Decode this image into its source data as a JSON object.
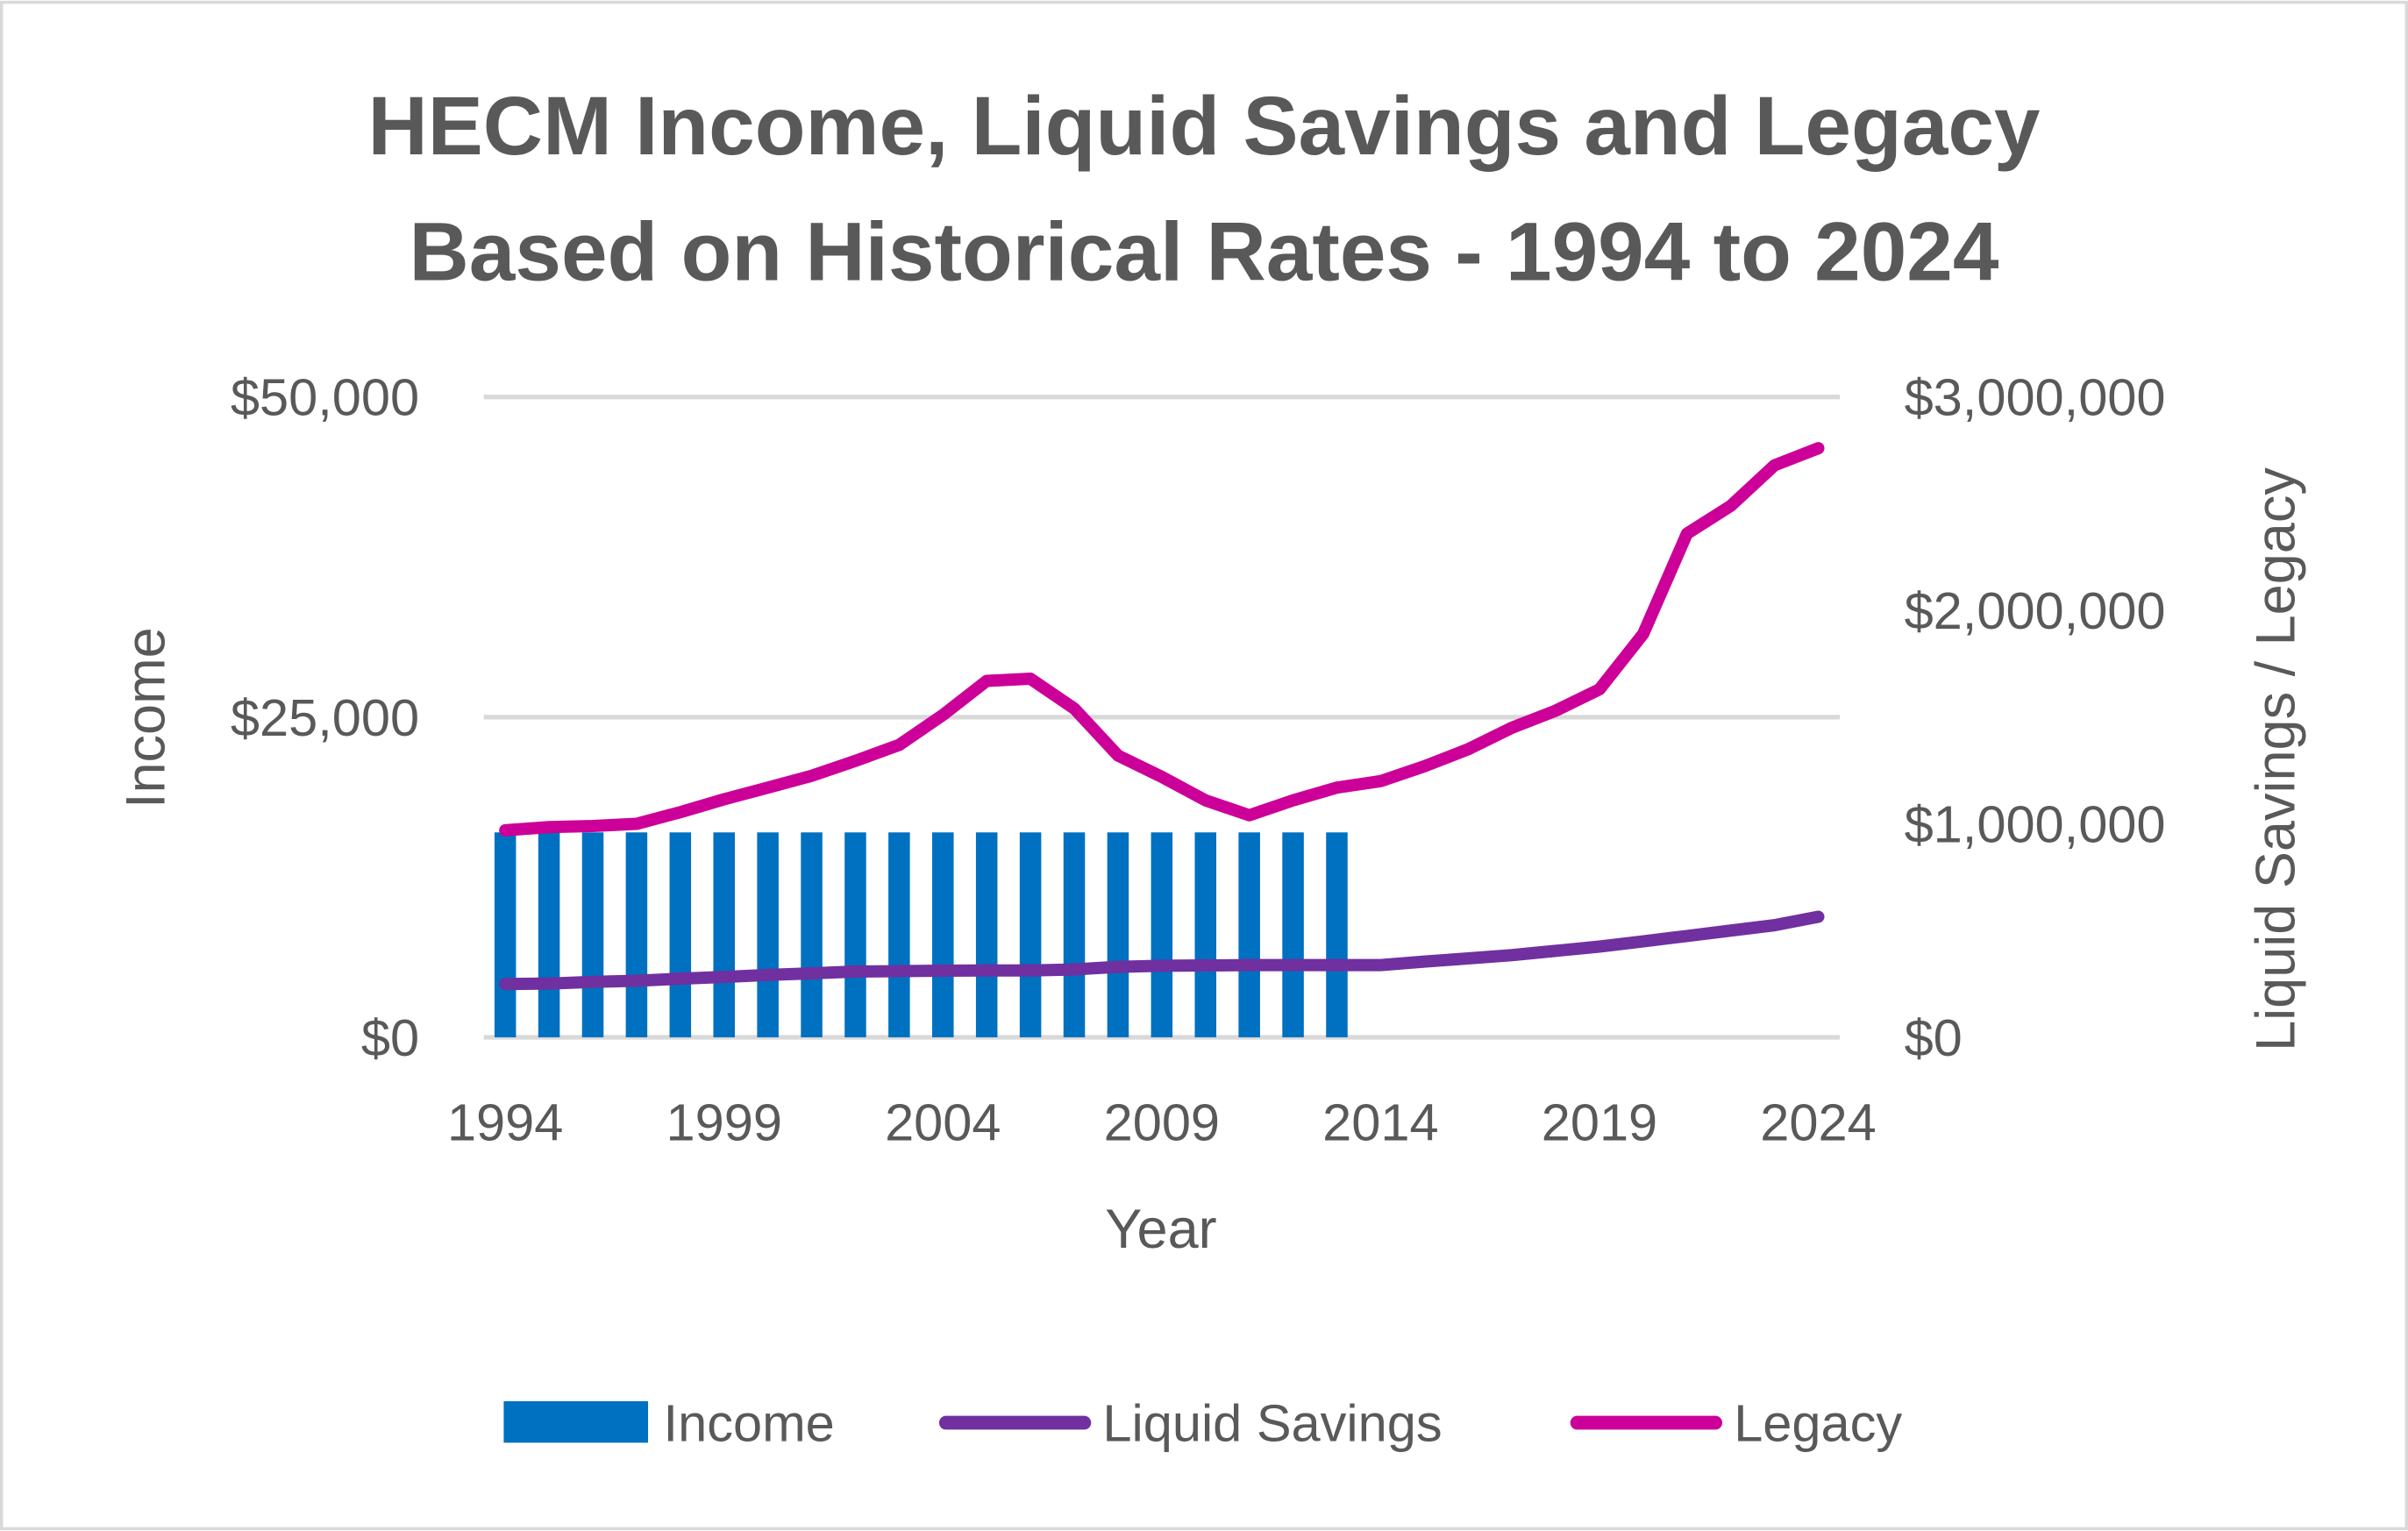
{
  "chart_data": {
    "type": "bar+line",
    "title_lines": [
      "HECM Income, Liquid Savings and Legacy",
      "Based on Historical Rates  - 1994 to 2024"
    ],
    "xlabel": "Year",
    "ylabel_left": "Income",
    "ylabel_right": "Liquid Savings / Legacy",
    "x_ticks": [
      "1994",
      "1999",
      "2004",
      "2009",
      "2014",
      "2019",
      "2024"
    ],
    "y_left_ticks": [
      "$0",
      "$25,000",
      "$50,000"
    ],
    "y_right_ticks": [
      "$0",
      "$1,000,000",
      "$2,000,000",
      "$3,000,000"
    ],
    "ylim_left": [
      0,
      50000
    ],
    "ylim_right": [
      0,
      3000000
    ],
    "grid": true,
    "legend_placement": "bottom",
    "x": [
      1994,
      1995,
      1996,
      1997,
      1998,
      1999,
      2000,
      2001,
      2002,
      2003,
      2004,
      2005,
      2006,
      2007,
      2008,
      2009,
      2010,
      2011,
      2012,
      2013,
      2014,
      2015,
      2016,
      2017,
      2018,
      2019,
      2020,
      2021,
      2022,
      2023,
      2024
    ],
    "series": [
      {
        "name": "Income",
        "type": "bar",
        "axis": "left",
        "color": "#0070C0",
        "values": [
          16000,
          16000,
          16000,
          16000,
          16000,
          16000,
          16000,
          16000,
          16000,
          16000,
          16000,
          16000,
          16000,
          16000,
          16000,
          16000,
          16000,
          16000,
          16000,
          16000,
          null,
          null,
          null,
          null,
          null,
          null,
          null,
          null,
          null,
          null,
          null
        ]
      },
      {
        "name": "Liquid Savings",
        "type": "line",
        "axis": "right",
        "color": "#7030A0",
        "values": [
          250000,
          252000,
          260000,
          265000,
          275000,
          283000,
          292000,
          300000,
          308000,
          310000,
          312000,
          313000,
          313000,
          318000,
          330000,
          335000,
          337000,
          338000,
          338000,
          338000,
          338000,
          355000,
          370000,
          385000,
          405000,
          425000,
          450000,
          475000,
          500000,
          525000,
          565000
        ]
      },
      {
        "name": "Legacy",
        "type": "line",
        "axis": "right",
        "color": "#CC0099",
        "values": [
          970000,
          985000,
          990000,
          1000000,
          1055000,
          1115000,
          1170000,
          1225000,
          1295000,
          1370000,
          1510000,
          1670000,
          1680000,
          1540000,
          1320000,
          1220000,
          1110000,
          1040000,
          1110000,
          1170000,
          1200000,
          1270000,
          1350000,
          1450000,
          1530000,
          1630000,
          1890000,
          2360000,
          2490000,
          2680000,
          2760000
        ]
      }
    ]
  }
}
